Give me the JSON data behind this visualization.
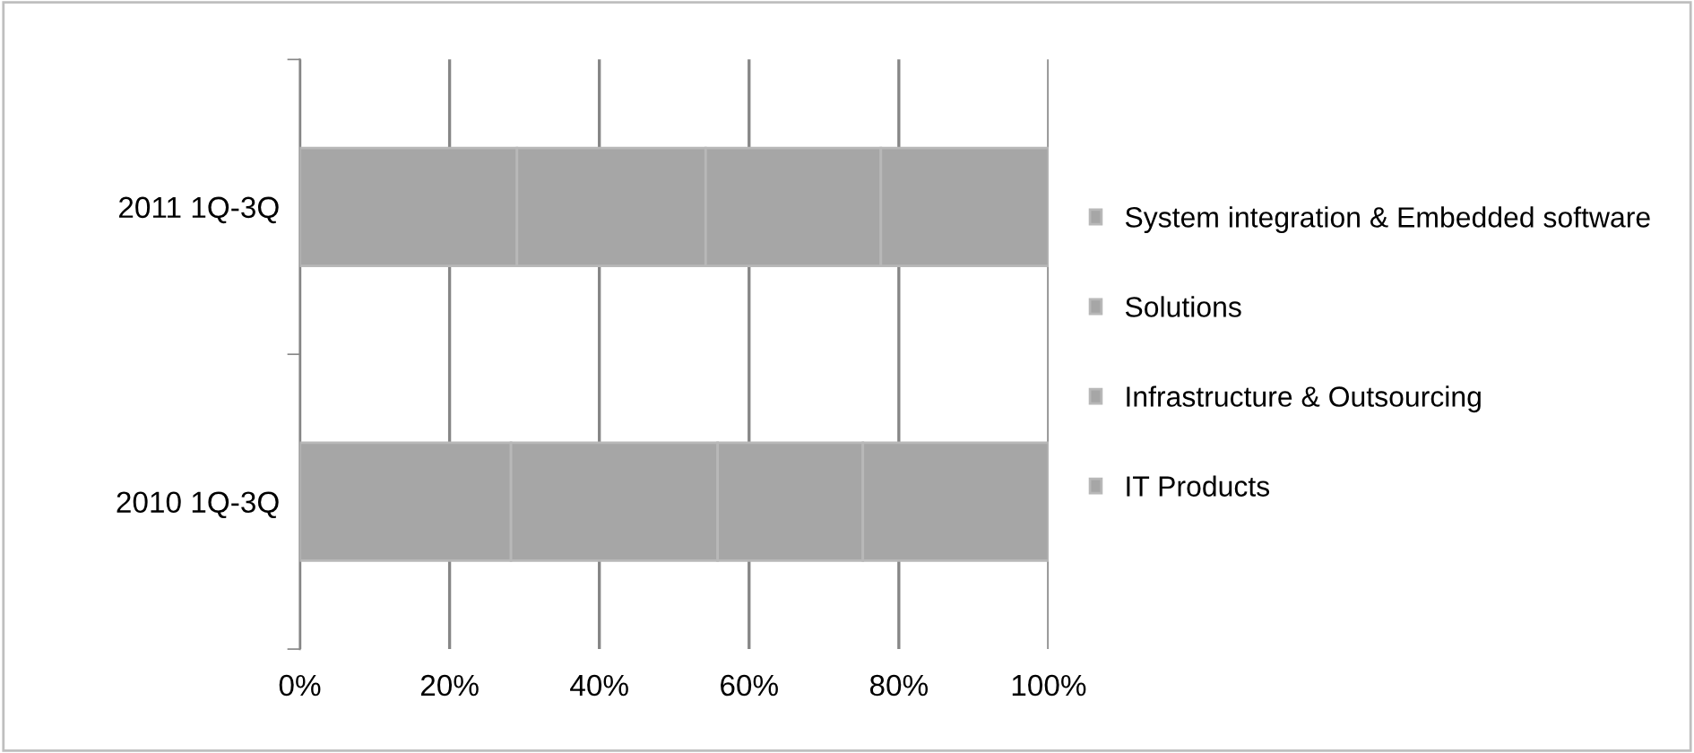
{
  "chart_data": {
    "type": "bar",
    "orientation": "horizontal",
    "stacked": true,
    "categories": [
      "2011 1Q-3Q",
      "2010 1Q-3Q"
    ],
    "series": [
      {
        "name": "System integration & Embedded software",
        "color": "#a6a6a6",
        "values": [
          29.0,
          28.2
        ]
      },
      {
        "name": "Solutions",
        "color": "#a6a6a6",
        "values": [
          25.2,
          27.6
        ]
      },
      {
        "name": "Infrastructure & Outsourcing",
        "color": "#a6a6a6",
        "values": [
          23.4,
          19.4
        ]
      },
      {
        "name": "IT Products",
        "color": "#a6a6a6",
        "values": [
          22.4,
          24.8
        ]
      }
    ],
    "xlim": [
      0,
      100
    ],
    "xticks": [
      {
        "value": 0,
        "label": "0%"
      },
      {
        "value": 20,
        "label": "20%"
      },
      {
        "value": 40,
        "label": "40%"
      },
      {
        "value": 60,
        "label": "60%"
      },
      {
        "value": 80,
        "label": "80%"
      },
      {
        "value": 100,
        "label": "100%"
      }
    ],
    "grid": "x",
    "legend": "right"
  }
}
